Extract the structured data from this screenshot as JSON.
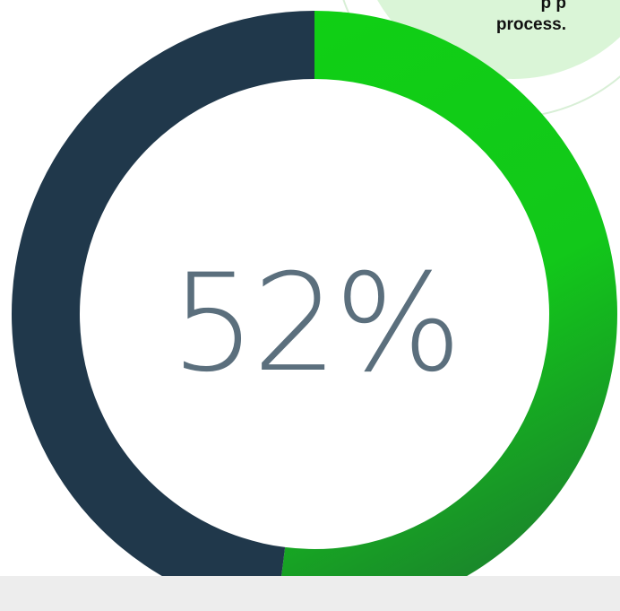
{
  "callout": {
    "text": "p​ p\nprocess."
  },
  "chart_data": {
    "type": "pie",
    "variant": "donut",
    "center_label": "52%",
    "value_percent": 52,
    "segments": [
      {
        "value": 52,
        "color": "#12c81a"
      },
      {
        "value": 48,
        "color": "#20384b"
      }
    ],
    "colors": {
      "filled_start": "#10d014",
      "filled_end": "#1a8a2a",
      "remaining": "#20384b",
      "center_text": "#5b6f7d",
      "callout_bg": "#daf5d7"
    }
  }
}
